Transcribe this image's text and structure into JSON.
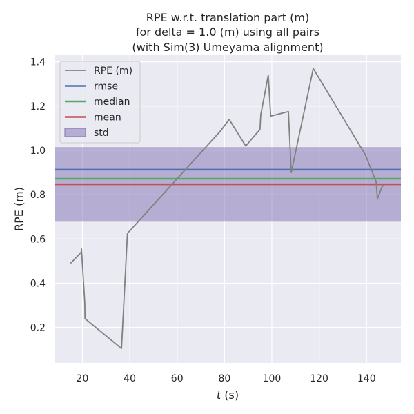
{
  "chart_data": {
    "type": "line",
    "title_lines": [
      "RPE w.r.t. translation part (m)",
      "for delta = 1.0 (m) using all pairs",
      "(with Sim(3) Umeyama alignment)"
    ],
    "xlabel_italic": "t",
    "xlabel_unit": " (s)",
    "ylabel": "RPE (m)",
    "xlim": [
      8.5,
      154.5
    ],
    "ylim": [
      0.04,
      1.43
    ],
    "xticks": [
      20,
      40,
      60,
      80,
      100,
      120,
      140
    ],
    "yticks": [
      0.2,
      0.4,
      0.6,
      0.8,
      1.0,
      1.2,
      1.4
    ],
    "grid": true,
    "legend_position": "upper-left",
    "series": [
      {
        "name": "RPE (m)",
        "color": "#808080",
        "x": [
          15.0,
          19.5,
          19.6,
          21.0,
          21.1,
          36.5,
          39.0,
          78.5,
          82.0,
          89.0,
          95.0,
          95.3,
          98.5,
          99.5,
          107.0,
          108.2,
          117.5,
          139.5,
          144.0,
          144.6,
          146.5,
          147.5
        ],
        "y": [
          0.49,
          0.54,
          0.555,
          0.31,
          0.24,
          0.105,
          0.625,
          1.09,
          1.14,
          1.02,
          1.095,
          1.16,
          1.34,
          1.155,
          1.175,
          0.9,
          1.37,
          0.98,
          0.86,
          0.78,
          0.835,
          0.845
        ]
      }
    ],
    "stats": [
      {
        "name": "rmse",
        "value": 0.913,
        "color": "#4c72b0"
      },
      {
        "name": "median",
        "value": 0.872,
        "color": "#55a868"
      },
      {
        "name": "mean",
        "value": 0.847,
        "color": "#c44e52"
      }
    ],
    "std_band": {
      "name": "std",
      "low": 0.678,
      "high": 1.015,
      "color": "#8172b2"
    }
  }
}
